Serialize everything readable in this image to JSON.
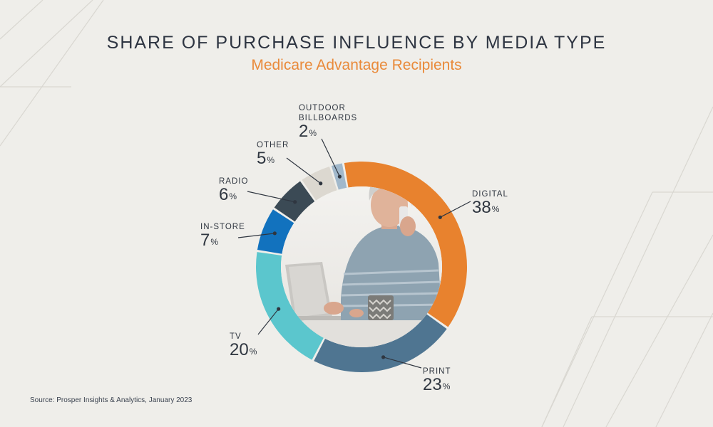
{
  "header": {
    "title": "SHARE OF PURCHASE INFLUENCE BY MEDIA TYPE",
    "subtitle": "Medicare Advantage Recipients"
  },
  "footer": {
    "source": "Source: Prosper Insights & Analytics, January 2023"
  },
  "colors": {
    "background": "#efeeea",
    "title": "#2e3542",
    "subtitle": "#e98a3a"
  },
  "center_photo": {
    "description_icon": "woman-on-phone-with-laptop-photo"
  },
  "chart_data": {
    "type": "pie",
    "style": "donut",
    "title": "SHARE OF PURCHASE INFLUENCE BY MEDIA TYPE",
    "subtitle": "Medicare Advantage Recipients",
    "unit": "%",
    "slices": [
      {
        "label": "DIGITAL",
        "label_lines": [
          "DIGITAL"
        ],
        "value": 38,
        "display": "38",
        "color": "#e8822e"
      },
      {
        "label": "PRINT",
        "label_lines": [
          "PRINT"
        ],
        "value": 23,
        "display": "23",
        "color": "#4f7591"
      },
      {
        "label": "TV",
        "label_lines": [
          "TV"
        ],
        "value": 20,
        "display": "20",
        "color": "#5bc6cd"
      },
      {
        "label": "IN-STORE",
        "label_lines": [
          "IN-STORE"
        ],
        "value": 7,
        "display": "7",
        "color": "#1272be"
      },
      {
        "label": "RADIO",
        "label_lines": [
          "RADIO"
        ],
        "value": 6,
        "display": "6",
        "color": "#3b4a55"
      },
      {
        "label": "OTHER",
        "label_lines": [
          "OTHER"
        ],
        "value": 5,
        "display": "5",
        "color": "#dcd8d0"
      },
      {
        "label": "OUTDOOR BILLBOARDS",
        "label_lines": [
          "OUTDOOR",
          "BILLBOARDS"
        ],
        "value": 2,
        "display": "2",
        "color": "#a1b8cb"
      }
    ],
    "legend": "none"
  }
}
